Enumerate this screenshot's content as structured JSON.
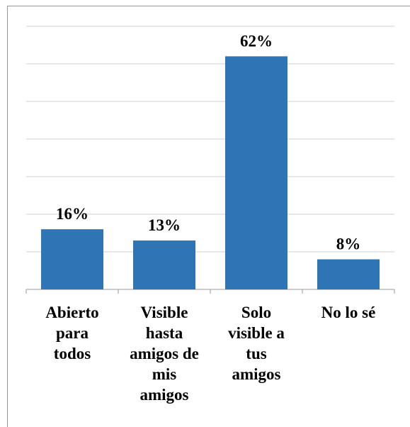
{
  "chart_data": {
    "type": "bar",
    "categories": [
      "Abierto para todos",
      "Visible hasta amigos de mis amigos",
      "Solo visible a tus amigos",
      "No lo sé"
    ],
    "values": [
      16,
      13,
      62,
      8
    ],
    "value_labels": [
      "16%",
      "13%",
      "62%",
      "8%"
    ],
    "color": "#2e75b6",
    "ylim": [
      0,
      70
    ],
    "yticks": [
      0,
      10,
      20,
      30,
      40,
      50,
      60,
      70
    ],
    "grid": true
  }
}
